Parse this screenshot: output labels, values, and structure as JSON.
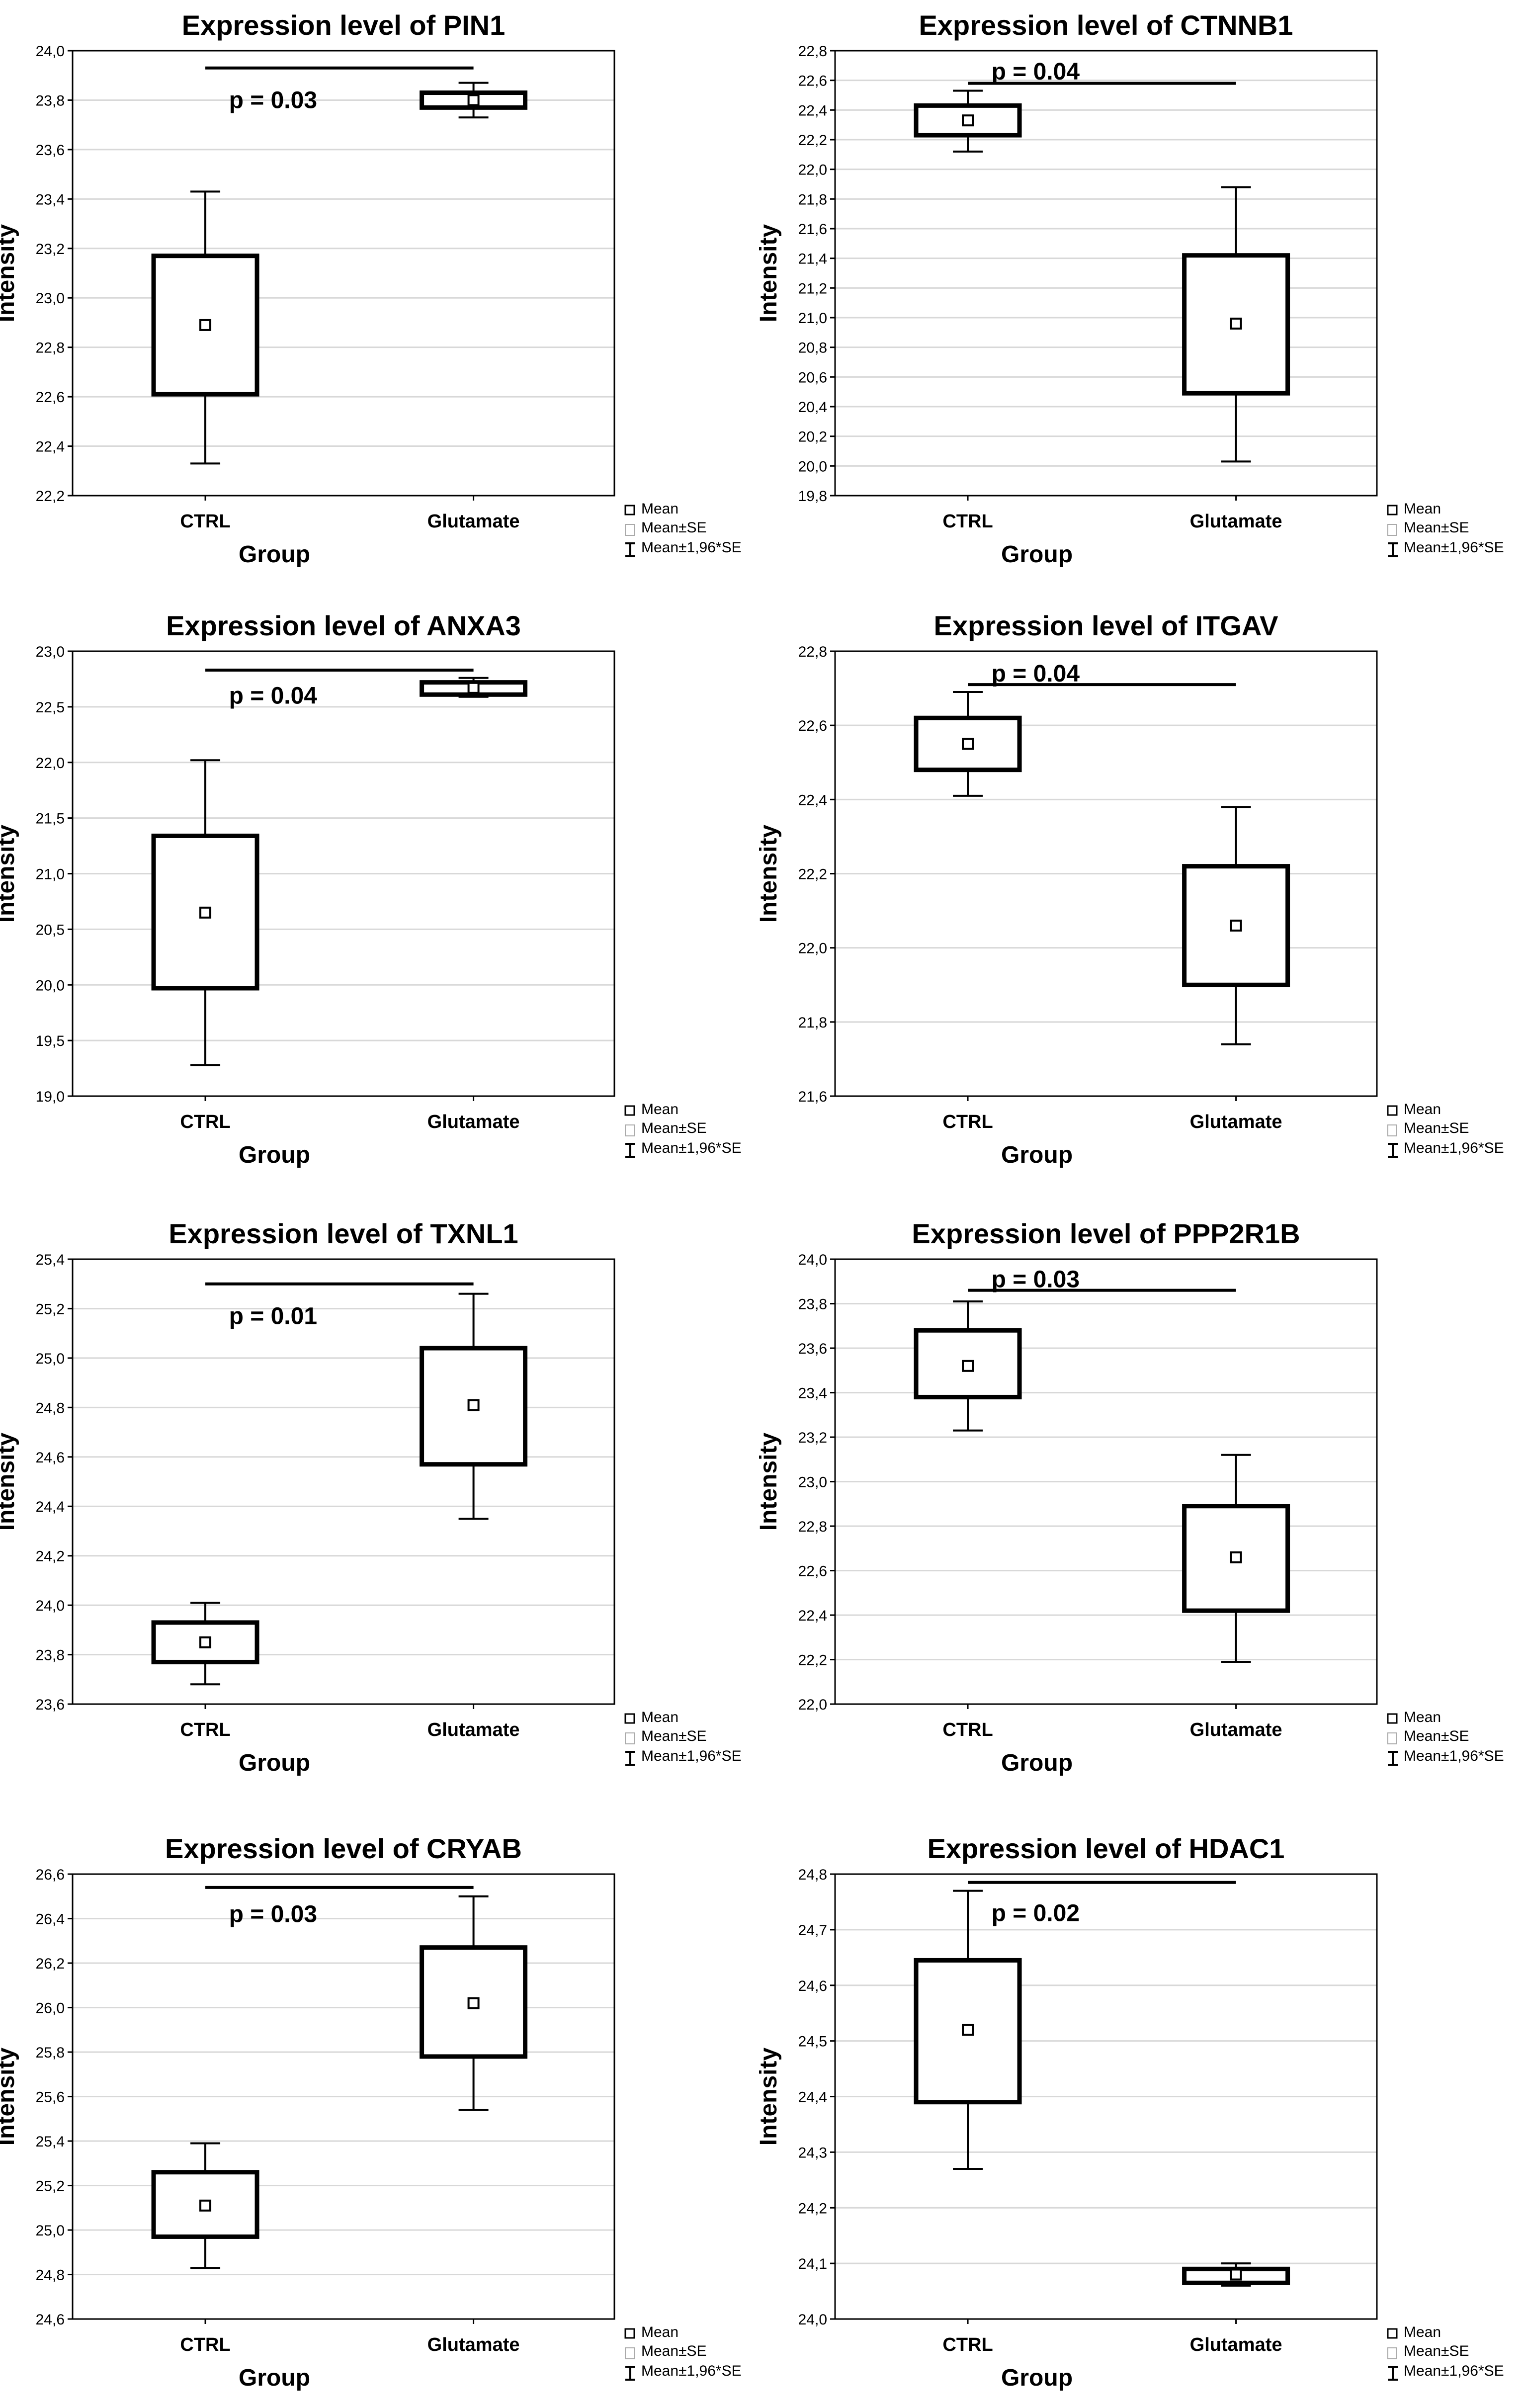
{
  "legend": {
    "mean": "Mean",
    "se": "Mean±SE",
    "ci": "Mean±1,96*SE"
  },
  "chart_data": [
    {
      "type": "box",
      "title": "Expression level of PIN1",
      "xlabel": "Group",
      "ylabel": "Intensity",
      "categories": [
        "CTRL",
        "Glutamate"
      ],
      "ylim": [
        22.2,
        24.0
      ],
      "ytick_step": 0.2,
      "mean": [
        22.89,
        23.8
      ],
      "se_low": [
        22.61,
        23.77
      ],
      "se_high": [
        23.17,
        23.83
      ],
      "ci_low": [
        22.33,
        23.73
      ],
      "ci_high": [
        23.43,
        23.87
      ],
      "p_value": "p = 0.03",
      "bracket_y": 23.93,
      "p_y": 23.8
    },
    {
      "type": "box",
      "title": "Expression level of CTNNB1",
      "xlabel": "Group",
      "ylabel": "Intensity",
      "categories": [
        "CTRL",
        "Glutamate"
      ],
      "ylim": [
        19.8,
        22.8
      ],
      "ytick_step": 0.2,
      "mean": [
        22.33,
        20.96
      ],
      "se_low": [
        22.23,
        20.49
      ],
      "se_high": [
        22.43,
        21.42
      ],
      "ci_low": [
        22.12,
        20.03
      ],
      "ci_high": [
        22.53,
        21.88
      ],
      "p_value": "p = 0.04",
      "bracket_y": 22.58,
      "p_y": 22.66
    },
    {
      "type": "box",
      "title": "Expression level of ANXA3",
      "xlabel": "Group",
      "ylabel": "Intensity",
      "categories": [
        "CTRL",
        "Glutamate"
      ],
      "ylim": [
        19.0,
        23.0
      ],
      "ytick_step": 0.5,
      "mean": [
        20.65,
        22.67
      ],
      "se_low": [
        19.97,
        22.61
      ],
      "se_high": [
        21.34,
        22.72
      ],
      "ci_low": [
        19.28,
        22.59
      ],
      "ci_high": [
        22.02,
        22.76
      ],
      "p_value": "p = 0.04",
      "bracket_y": 22.83,
      "p_y": 22.6
    },
    {
      "type": "box",
      "title": "Expression level of ITGAV",
      "xlabel": "Group",
      "ylabel": "Intensity",
      "categories": [
        "CTRL",
        "Glutamate"
      ],
      "ylim": [
        21.6,
        22.8
      ],
      "ytick_step": 0.2,
      "mean": [
        22.55,
        22.06
      ],
      "se_low": [
        22.48,
        21.9
      ],
      "se_high": [
        22.62,
        22.22
      ],
      "ci_low": [
        22.41,
        21.74
      ],
      "ci_high": [
        22.69,
        22.38
      ],
      "p_value": "p = 0.04",
      "bracket_y": 22.71,
      "p_y": 22.74
    },
    {
      "type": "box",
      "title": "Expression level of TXNL1",
      "xlabel": "Group",
      "ylabel": "Intensity",
      "categories": [
        "CTRL",
        "Glutamate"
      ],
      "ylim": [
        23.6,
        25.4
      ],
      "ytick_step": 0.2,
      "mean": [
        23.85,
        24.81
      ],
      "se_low": [
        23.77,
        24.57
      ],
      "se_high": [
        23.93,
        25.04
      ],
      "ci_low": [
        23.68,
        24.35
      ],
      "ci_high": [
        24.01,
        25.26
      ],
      "p_value": "p = 0.01",
      "bracket_y": 25.3,
      "p_y": 25.17
    },
    {
      "type": "box",
      "title": "Expression level of PPP2R1B",
      "xlabel": "Group",
      "ylabel": "Intensity",
      "categories": [
        "CTRL",
        "Glutamate"
      ],
      "ylim": [
        22.0,
        24.0
      ],
      "ytick_step": 0.2,
      "mean": [
        23.52,
        22.66
      ],
      "se_low": [
        23.38,
        22.42
      ],
      "se_high": [
        23.68,
        22.89
      ],
      "ci_low": [
        23.23,
        22.19
      ],
      "ci_high": [
        23.81,
        23.12
      ],
      "p_value": "p = 0.03",
      "bracket_y": 23.86,
      "p_y": 23.91
    },
    {
      "type": "box",
      "title": "Expression level of CRYAB",
      "xlabel": "Group",
      "ylabel": "Intensity",
      "categories": [
        "CTRL",
        "Glutamate"
      ],
      "ylim": [
        24.6,
        26.6
      ],
      "ytick_step": 0.2,
      "mean": [
        25.11,
        26.02
      ],
      "se_low": [
        24.97,
        25.78
      ],
      "se_high": [
        25.26,
        26.27
      ],
      "ci_low": [
        24.83,
        25.54
      ],
      "ci_high": [
        25.39,
        26.5
      ],
      "p_value": "p = 0.03",
      "bracket_y": 26.54,
      "p_y": 26.42
    },
    {
      "type": "box",
      "title": "Expression level of HDAC1",
      "xlabel": "Group",
      "ylabel": "Intensity",
      "categories": [
        "CTRL",
        "Glutamate"
      ],
      "ylim": [
        24.0,
        24.8
      ],
      "ytick_step": 0.1,
      "mean": [
        24.52,
        24.08
      ],
      "se_low": [
        24.39,
        24.065
      ],
      "se_high": [
        24.645,
        24.09
      ],
      "ci_low": [
        24.27,
        24.06
      ],
      "ci_high": [
        24.77,
        24.1
      ],
      "p_value": "p = 0.02",
      "bracket_y": 24.785,
      "p_y": 24.73
    }
  ]
}
